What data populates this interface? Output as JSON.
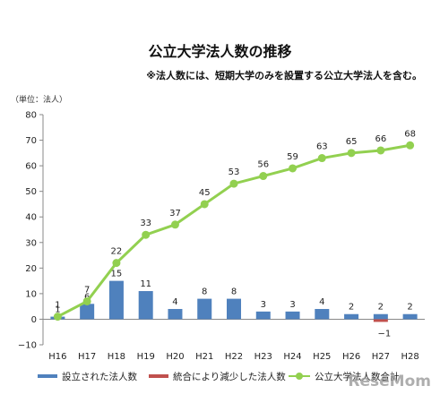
{
  "chart_data": {
    "type": "bar",
    "title": "公立大学法人数の推移",
    "subtitle": "※法人数には、短期大学のみを設置する公立大学法人を含む。",
    "unit_label": "（単位：法人）",
    "categories": [
      "H16",
      "H17",
      "H18",
      "H19",
      "H20",
      "H21",
      "H22",
      "H23",
      "H24",
      "H25",
      "H26",
      "H27",
      "H28"
    ],
    "ylim": [
      -10,
      80
    ],
    "yticks": [
      -10,
      0,
      10,
      20,
      30,
      40,
      50,
      60,
      70,
      80
    ],
    "grid": false,
    "legend_position": "bottom",
    "series": [
      {
        "name": "設立された法人数",
        "kind": "bar",
        "color": "#4f81bd",
        "values": [
          1,
          6,
          15,
          11,
          4,
          8,
          8,
          3,
          3,
          4,
          2,
          2,
          2
        ]
      },
      {
        "name": "統合により減少した法人数",
        "kind": "bar",
        "color": "#c0504d",
        "values": [
          0,
          0,
          0,
          0,
          0,
          0,
          0,
          0,
          0,
          0,
          0,
          -1,
          0
        ]
      },
      {
        "name": "公立大学法人数合計",
        "kind": "line",
        "color": "#92d050",
        "values": [
          1,
          7,
          22,
          33,
          37,
          45,
          53,
          56,
          59,
          63,
          65,
          66,
          68
        ]
      }
    ]
  },
  "watermark": "ReseMom"
}
